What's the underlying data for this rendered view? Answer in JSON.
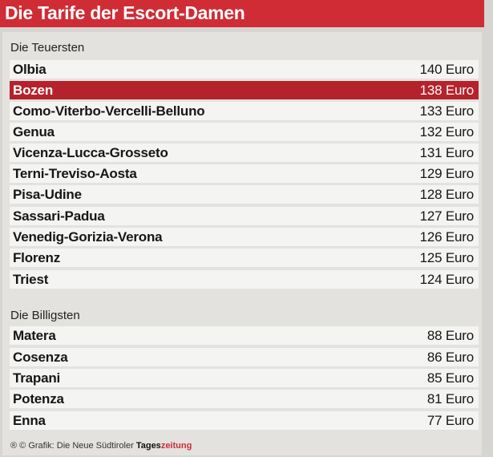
{
  "header": {
    "title": "Die Tarife der Escort-Damen"
  },
  "sections": [
    {
      "label": "Die Teuersten",
      "rows": [
        {
          "name": "Olbia",
          "price": "140 Euro"
        },
        {
          "name": "Bozen",
          "price": "138 Euro",
          "highlight": true
        },
        {
          "name": "Como-Viterbo-Vercelli-Belluno",
          "price": "133 Euro"
        },
        {
          "name": "Genua",
          "price": "132 Euro"
        },
        {
          "name": "Vicenza-Lucca-Grosseto",
          "price": "131 Euro"
        },
        {
          "name": "Terni-Treviso-Aosta",
          "price": "129 Euro"
        },
        {
          "name": "Pisa-Udine",
          "price": "128 Euro"
        },
        {
          "name": "Sassari-Padua",
          "price": "127 Euro"
        },
        {
          "name": "Venedig-Gorizia-Verona",
          "price": "126 Euro"
        },
        {
          "name": "Florenz",
          "price": "125 Euro"
        },
        {
          "name": "Triest",
          "price": "124 Euro"
        }
      ]
    },
    {
      "label": "Die Billigsten",
      "rows": [
        {
          "name": "Matera",
          "price": "88 Euro"
        },
        {
          "name": "Cosenza",
          "price": "86 Euro"
        },
        {
          "name": "Trapani",
          "price": "85 Euro"
        },
        {
          "name": "Potenza",
          "price": "81 Euro"
        },
        {
          "name": "Enna",
          "price": "77 Euro"
        }
      ]
    }
  ],
  "footer": {
    "credit_prefix": "® © Grafik: Die Neue Südtiroler ",
    "brand_part1": "Tages",
    "brand_part2": "zeitung"
  },
  "colors": {
    "accent": "#cf2c35",
    "highlight_row": "#b5222b"
  }
}
